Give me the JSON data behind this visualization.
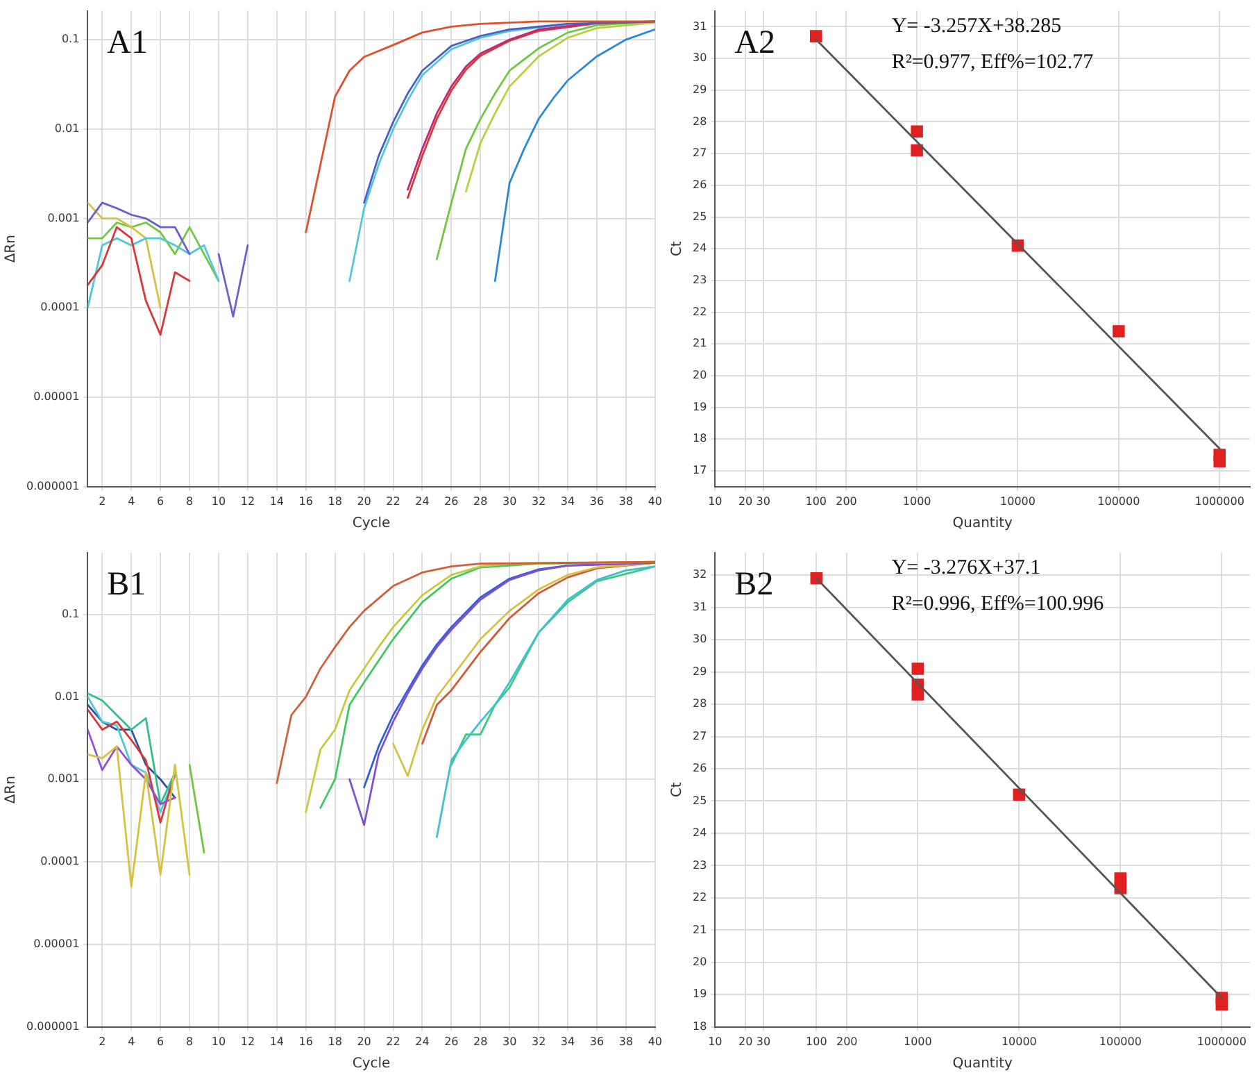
{
  "chart_data": [
    {
      "type": "line",
      "xlabel": "Cycle",
      "ylabel": "ΔRn",
      "log": "y",
      "grid": true,
      "legend": false,
      "xlim": [
        1,
        40
      ],
      "ylim": [
        1e-06,
        0.21
      ],
      "xticks": [
        2,
        4,
        6,
        8,
        10,
        12,
        14,
        16,
        18,
        20,
        22,
        24,
        26,
        28,
        30,
        32,
        34,
        36,
        38,
        40
      ],
      "yticks": [
        {
          "value": 1e-06,
          "label": "0.000001"
        },
        {
          "value": 1e-05,
          "label": "0.00001"
        },
        {
          "value": 0.0001,
          "label": "0.0001"
        },
        {
          "value": 0.001,
          "label": "0.001"
        },
        {
          "value": 0.01,
          "label": "0.01"
        },
        {
          "value": 0.1,
          "label": "0.1"
        }
      ],
      "annotations": [
        "A1"
      ],
      "series": [
        {
          "color": "#e0502a",
          "x": [
            16,
            17,
            18,
            19,
            20,
            22,
            24,
            26,
            28,
            32,
            40
          ],
          "values": [
            0.0007,
            0.004,
            0.023,
            0.045,
            0.064,
            0.087,
            0.12,
            0.14,
            0.15,
            0.16,
            0.16
          ]
        },
        {
          "color": "#4a5fc8",
          "x": [
            20,
            21,
            22,
            23,
            24,
            26,
            28,
            30,
            34,
            40
          ],
          "values": [
            0.0015,
            0.005,
            0.012,
            0.025,
            0.045,
            0.085,
            0.11,
            0.13,
            0.15,
            0.16
          ]
        },
        {
          "color": "#50c8d8",
          "x": [
            19,
            20,
            21,
            22,
            23,
            24,
            26,
            28,
            30,
            34
          ],
          "values": [
            0.0002,
            0.0013,
            0.004,
            0.01,
            0.021,
            0.04,
            0.078,
            0.105,
            0.125,
            0.15
          ]
        },
        {
          "color": "#c0287a",
          "x": [
            23,
            24,
            25,
            26,
            27,
            28,
            30,
            32,
            36,
            40
          ],
          "values": [
            0.0021,
            0.006,
            0.015,
            0.03,
            0.05,
            0.07,
            0.1,
            0.13,
            0.155,
            0.16
          ]
        },
        {
          "color": "#d83838",
          "x": [
            23,
            24,
            25,
            26,
            27,
            28,
            30,
            32,
            36,
            40
          ],
          "values": [
            0.0017,
            0.005,
            0.013,
            0.027,
            0.046,
            0.066,
            0.097,
            0.125,
            0.152,
            0.16
          ]
        },
        {
          "color": "#70c840",
          "x": [
            25,
            26,
            27,
            28,
            29,
            30,
            32,
            34,
            36,
            40
          ],
          "values": [
            0.00035,
            0.0015,
            0.006,
            0.013,
            0.025,
            0.045,
            0.08,
            0.12,
            0.145,
            0.16
          ]
        },
        {
          "color": "#b8d040",
          "x": [
            27,
            28,
            29,
            30,
            32,
            34,
            36,
            40
          ],
          "values": [
            0.002,
            0.007,
            0.015,
            0.03,
            0.065,
            0.105,
            0.135,
            0.155
          ]
        },
        {
          "color": "#2a8ad8",
          "x": [
            29,
            30,
            31,
            32,
            33,
            34,
            36,
            38,
            40
          ],
          "values": [
            0.0002,
            0.0025,
            0.006,
            0.013,
            0.022,
            0.035,
            0.065,
            0.1,
            0.13
          ]
        },
        {
          "color": "#d83838",
          "x": [
            1,
            2,
            3,
            4,
            5,
            6,
            7,
            8
          ],
          "values": [
            0.00018,
            0.0003,
            0.0008,
            0.0006,
            0.00012,
            5e-05,
            0.00025,
            0.0002
          ]
        },
        {
          "color": "#6a5fd0",
          "x": [
            1,
            2,
            3,
            4,
            5,
            6,
            7,
            8
          ],
          "values": [
            0.0009,
            0.0015,
            0.0013,
            0.0011,
            0.001,
            0.0008,
            0.0008,
            0.0004
          ]
        },
        {
          "color": "#50c8d8",
          "x": [
            1,
            2,
            3,
            4,
            5,
            6,
            7,
            8,
            9,
            10
          ],
          "values": [
            0.0001,
            0.0005,
            0.0006,
            0.0005,
            0.0006,
            0.0006,
            0.0005,
            0.0004,
            0.0005,
            0.0002
          ]
        },
        {
          "color": "#d8c040",
          "x": [
            1,
            2,
            3,
            4,
            5,
            6
          ],
          "values": [
            0.0015,
            0.001,
            0.001,
            0.0008,
            0.0006,
            0.0001
          ]
        },
        {
          "color": "#70c840",
          "x": [
            1,
            2,
            3,
            4,
            5,
            6,
            7,
            8,
            9,
            10
          ],
          "values": [
            0.0006,
            0.0006,
            0.0009,
            0.0008,
            0.0009,
            0.0007,
            0.0004,
            0.0008,
            0.0004,
            0.0002
          ]
        },
        {
          "color": "#6a5fd0",
          "x": [
            10,
            11,
            12
          ],
          "values": [
            0.0004,
            8e-05,
            0.0005
          ]
        }
      ]
    },
    {
      "type": "scatter",
      "xlabel": "Quantity",
      "ylabel": "Ct",
      "log": "x",
      "grid": true,
      "legend": false,
      "marker": "square",
      "xlim": [
        10,
        2000000
      ],
      "ylim": [
        16.5,
        31.5
      ],
      "xticks": [
        10,
        20,
        30,
        100,
        200,
        1000,
        10000,
        100000,
        1000000
      ],
      "yticks": [
        17,
        18,
        19,
        20,
        21,
        22,
        23,
        24,
        25,
        26,
        27,
        28,
        29,
        30,
        31
      ],
      "annotations": [
        "A2",
        "Y= -3.257X+38.285",
        "R²=0.977, Eff%=102.77"
      ],
      "series": [
        {
          "type": "line",
          "color": "#555555",
          "marker": "none",
          "x": [
            100,
            1000000
          ],
          "values": [
            30.6,
            17.7
          ]
        },
        {
          "color": "#e02020",
          "x": [
            100,
            1000,
            1000,
            10000,
            100000,
            1000000,
            1000000
          ],
          "values": [
            30.7,
            27.7,
            27.1,
            24.1,
            21.4,
            17.5,
            17.3
          ]
        }
      ]
    },
    {
      "type": "line",
      "xlabel": "Cycle",
      "ylabel": "ΔRn",
      "log": "y",
      "grid": true,
      "legend": false,
      "xlim": [
        1,
        40
      ],
      "ylim": [
        1e-06,
        0.56
      ],
      "xticks": [
        2,
        4,
        6,
        8,
        10,
        12,
        14,
        16,
        18,
        20,
        22,
        24,
        26,
        28,
        30,
        32,
        34,
        36,
        38,
        40
      ],
      "yticks": [
        {
          "value": 1e-06,
          "label": "0.000001"
        },
        {
          "value": 1e-05,
          "label": "0.00001"
        },
        {
          "value": 0.0001,
          "label": "0.0001"
        },
        {
          "value": 0.001,
          "label": "0.001"
        },
        {
          "value": 0.01,
          "label": "0.01"
        },
        {
          "value": 0.1,
          "label": "0.1"
        }
      ],
      "annotations": [
        "B1"
      ],
      "series": [
        {
          "color": "#d0603a",
          "x": [
            14,
            15,
            16,
            17,
            18,
            19,
            20,
            22,
            24,
            26,
            28,
            40
          ],
          "values": [
            0.0009,
            0.006,
            0.01,
            0.022,
            0.04,
            0.07,
            0.11,
            0.22,
            0.32,
            0.38,
            0.41,
            0.43
          ]
        },
        {
          "color": "#c8c840",
          "x": [
            16,
            17,
            18,
            19,
            20,
            21,
            22,
            24,
            26,
            28,
            30,
            40
          ],
          "values": [
            0.0004,
            0.0023,
            0.004,
            0.012,
            0.022,
            0.04,
            0.07,
            0.17,
            0.3,
            0.38,
            0.41,
            0.43
          ]
        },
        {
          "color": "#40c860",
          "x": [
            17,
            18,
            19,
            20,
            22,
            24,
            26,
            28,
            32,
            40
          ],
          "values": [
            0.00045,
            0.001,
            0.008,
            0.015,
            0.05,
            0.14,
            0.27,
            0.37,
            0.41,
            0.43
          ]
        },
        {
          "color": "#8050d0",
          "x": [
            19,
            20,
            21,
            22,
            23,
            24,
            25,
            26,
            28,
            30,
            32,
            34,
            40
          ],
          "values": [
            0.001,
            0.00028,
            0.002,
            0.005,
            0.011,
            0.022,
            0.04,
            0.065,
            0.15,
            0.26,
            0.34,
            0.39,
            0.42
          ]
        },
        {
          "color": "#3060d8",
          "x": [
            20,
            21,
            22,
            23,
            24,
            25,
            26,
            28,
            30,
            32,
            34,
            40
          ],
          "values": [
            0.0008,
            0.0025,
            0.006,
            0.012,
            0.024,
            0.043,
            0.07,
            0.16,
            0.27,
            0.35,
            0.39,
            0.42
          ]
        },
        {
          "color": "#d8c040",
          "x": [
            22,
            23,
            24,
            25,
            26,
            28,
            30,
            32,
            34,
            36,
            40
          ],
          "values": [
            0.0027,
            0.0011,
            0.004,
            0.01,
            0.017,
            0.05,
            0.11,
            0.2,
            0.3,
            0.37,
            0.42
          ]
        },
        {
          "color": "#d05a3a",
          "x": [
            24,
            25,
            26,
            28,
            30,
            32,
            34,
            36,
            40
          ],
          "values": [
            0.0027,
            0.008,
            0.012,
            0.035,
            0.09,
            0.18,
            0.28,
            0.36,
            0.42
          ]
        },
        {
          "color": "#40c0d0",
          "x": [
            25,
            26,
            27,
            28,
            29,
            30,
            32,
            34,
            36,
            38,
            40
          ],
          "values": [
            0.0002,
            0.0017,
            0.003,
            0.005,
            0.008,
            0.015,
            0.06,
            0.15,
            0.26,
            0.34,
            0.38
          ]
        },
        {
          "color": "#40c880",
          "x": [
            26,
            27,
            28,
            29,
            30,
            32,
            34,
            36,
            40
          ],
          "values": [
            0.0015,
            0.0035,
            0.0035,
            0.008,
            0.013,
            0.06,
            0.14,
            0.25,
            0.38
          ]
        },
        {
          "color": "#d8c040",
          "x": [
            1,
            2,
            3,
            4,
            5,
            6,
            7,
            8
          ],
          "values": [
            0.002,
            0.0018,
            0.0025,
            5e-05,
            0.0012,
            7e-05,
            0.0015,
            7e-05
          ]
        },
        {
          "color": "#70c840",
          "x": [
            8,
            9
          ],
          "values": [
            0.0015,
            0.00013
          ]
        },
        {
          "color": "#9050d0",
          "x": [
            1,
            2,
            3,
            4,
            5,
            6,
            7
          ],
          "values": [
            0.004,
            0.0013,
            0.0025,
            0.0015,
            0.001,
            0.0005,
            0.0006
          ]
        },
        {
          "color": "#30c090",
          "x": [
            1,
            2,
            3,
            4,
            5,
            6,
            7
          ],
          "values": [
            0.011,
            0.009,
            0.006,
            0.004,
            0.0055,
            0.0005,
            0.0012
          ]
        },
        {
          "color": "#d83838",
          "x": [
            1,
            2,
            3,
            4,
            5,
            6,
            7
          ],
          "values": [
            0.007,
            0.004,
            0.005,
            0.003,
            0.0017,
            0.0003,
            0.0012
          ]
        },
        {
          "color": "#50c8d8",
          "x": [
            1,
            2,
            3,
            4,
            5,
            6,
            7
          ],
          "values": [
            0.01,
            0.005,
            0.0045,
            0.0015,
            0.0012,
            0.0004,
            0.0011
          ]
        },
        {
          "color": "#3050a0",
          "x": [
            1,
            2,
            3,
            4,
            5,
            6,
            7
          ],
          "values": [
            0.008,
            0.005,
            0.004,
            0.004,
            0.0015,
            0.001,
            0.0006
          ]
        }
      ]
    },
    {
      "type": "scatter",
      "xlabel": "Quantity",
      "ylabel": "Ct",
      "log": "x",
      "grid": true,
      "legend": false,
      "marker": "square",
      "xlim": [
        10,
        1900000
      ],
      "ylim": [
        18,
        32.7
      ],
      "xticks": [
        10,
        20,
        30,
        100,
        200,
        1000,
        10000,
        100000,
        1000000
      ],
      "yticks": [
        18,
        19,
        20,
        21,
        22,
        23,
        24,
        25,
        26,
        27,
        28,
        29,
        30,
        31,
        32
      ],
      "annotations": [
        "B2",
        "Y= -3.276X+37.1",
        "R²=0.996, Eff%=100.996"
      ],
      "series": [
        {
          "type": "line",
          "color": "#555555",
          "marker": "none",
          "x": [
            100,
            1000000
          ],
          "values": [
            31.9,
            18.9
          ]
        },
        {
          "color": "#e02020",
          "x": [
            100,
            1000,
            1000,
            1000,
            10000,
            100000,
            100000,
            1000000,
            1000000
          ],
          "values": [
            31.9,
            29.1,
            28.6,
            28.3,
            25.2,
            22.6,
            22.3,
            18.9,
            18.7
          ]
        }
      ]
    }
  ]
}
